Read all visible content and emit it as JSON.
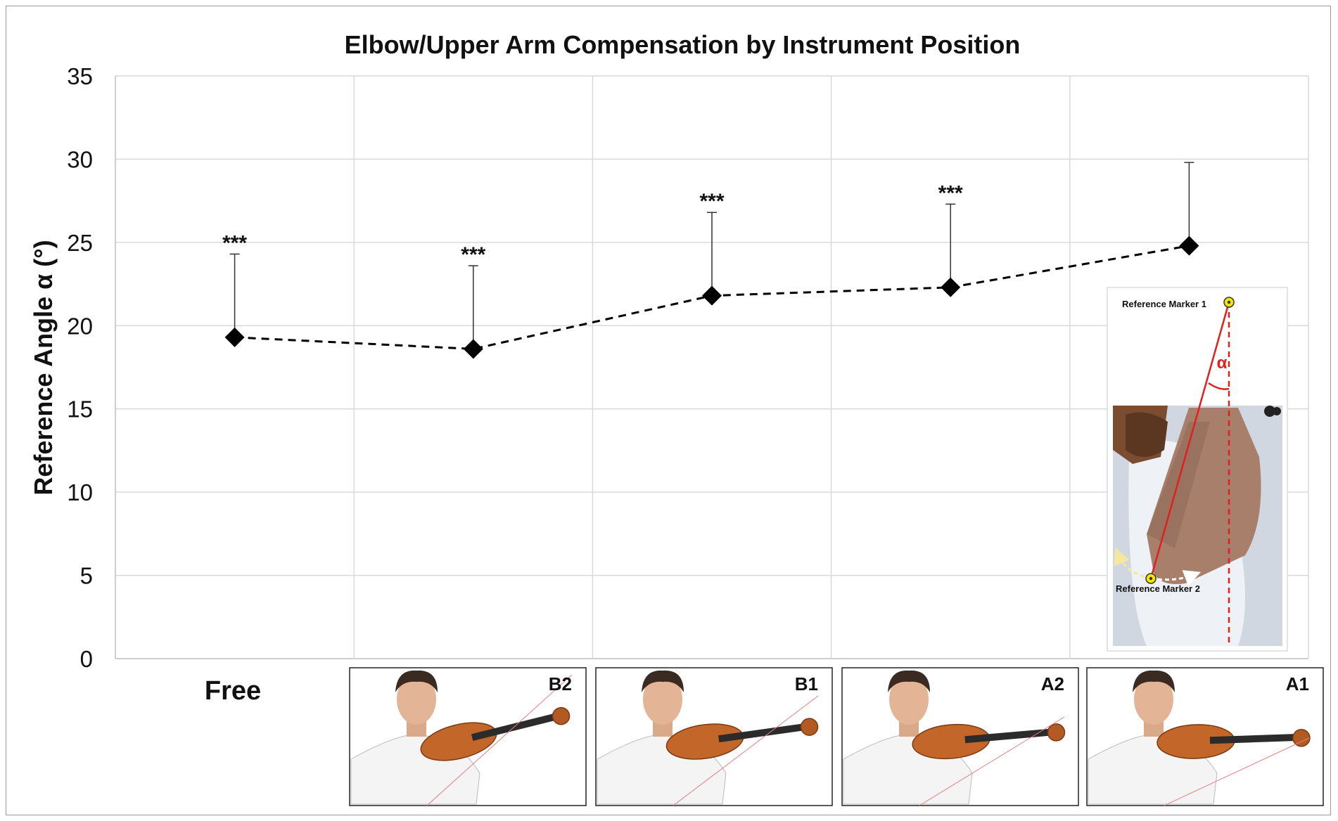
{
  "chart_data": {
    "type": "line",
    "title": "Elbow/Upper Arm Compensation by Instrument Position",
    "xlabel": "",
    "ylabel": "Reference Angle α (°)",
    "ylim": [
      0,
      35
    ],
    "yticks": [
      "0",
      "5",
      "10",
      "15",
      "20",
      "25",
      "30",
      "35"
    ],
    "grid": true,
    "categories": [
      "Free",
      "B2",
      "B1",
      "A2",
      "A1"
    ],
    "series": [
      {
        "values": [
          19.3,
          18.6,
          21.8,
          22.3,
          24.8
        ],
        "error_upper": [
          24.3,
          23.6,
          26.8,
          27.3,
          29.8
        ],
        "significance": [
          "***",
          "***",
          "***",
          "***",
          ""
        ]
      }
    ],
    "line_style": "dashed",
    "marker": "diamond"
  },
  "category_panels": [
    {
      "label": "B2",
      "illustration": "violinist-illustration"
    },
    {
      "label": "B1",
      "illustration": "violinist-illustration"
    },
    {
      "label": "A2",
      "illustration": "violinist-illustration"
    },
    {
      "label": "A1",
      "illustration": "violinist-illustration"
    }
  ],
  "inset": {
    "marker1_label": "Reference Marker 1",
    "marker2_label": "Reference Marker 2",
    "angle_symbol": "α",
    "colors": {
      "angle_lines": "#e0201e",
      "marker_fill": "#f5e600"
    }
  },
  "colors": {
    "series": "#000000",
    "grid": "#d9d9d9",
    "axis": "#bfbfbf"
  }
}
